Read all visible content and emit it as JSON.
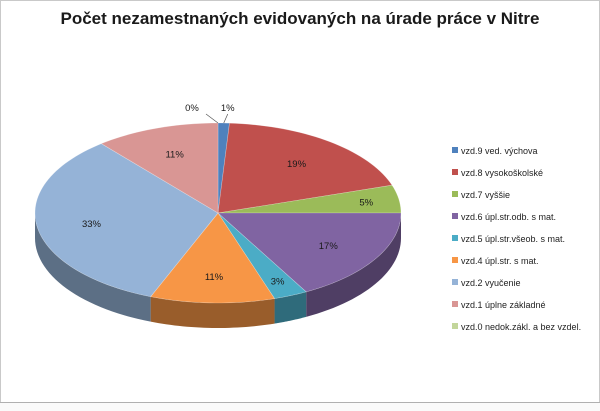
{
  "chart_data": {
    "type": "pie",
    "title": "Počet nezamestnaných evidovaných na úrade práce v Nitre",
    "legend_position": "right",
    "series": [
      {
        "name": "vzd.9 ved. výchova",
        "value": 1,
        "label": "1%",
        "color": "#4f81bd"
      },
      {
        "name": "vzd.8 vysokoškolské",
        "value": 19,
        "label": "19%",
        "color": "#c0504d"
      },
      {
        "name": "vzd.7 vyššie",
        "value": 5,
        "label": "5%",
        "color": "#9bbb59"
      },
      {
        "name": "vzd.6 úpl.str.odb. s mat.",
        "value": 17,
        "label": "17%",
        "color": "#8064a2"
      },
      {
        "name": "vzd.5 úpl.str.všeob. s mat.",
        "value": 3,
        "label": "3%",
        "color": "#4bacc6"
      },
      {
        "name": "vzd.4 úpl.str. s mat.",
        "value": 11,
        "label": "11%",
        "color": "#f79646"
      },
      {
        "name": "vzd.2 vyučenie",
        "value": 33,
        "label": "33%",
        "color": "#95b3d7"
      },
      {
        "name": "vzd.1 úplne základné",
        "value": 11,
        "label": "11%",
        "color": "#d99694"
      },
      {
        "name": "vzd.0 nedok.zákl. a bez vzdel.",
        "value": 0,
        "label": "0%",
        "color": "#c3d69b"
      }
    ]
  }
}
